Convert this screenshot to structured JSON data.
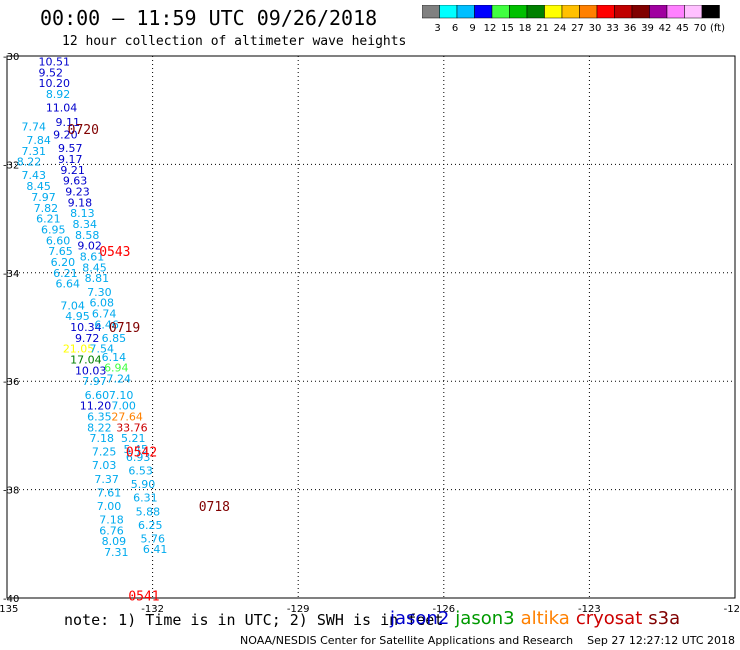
{
  "title": "00:00 – 11:59 UTC 09/26/2018",
  "subtitle": "12 hour collection of altimeter wave heights",
  "colorbar": {
    "colors": [
      "#808080",
      "#00ffff",
      "#00bfff",
      "#0000ff",
      "#40ff40",
      "#00c000",
      "#008000",
      "#ffff00",
      "#ffc000",
      "#ff8000",
      "#ff0000",
      "#c00000",
      "#800000",
      "#a000a0",
      "#ff80ff",
      "#ffc0ff",
      "#000000"
    ],
    "labels": [
      "3",
      "6",
      "9",
      "12",
      "15",
      "18",
      "21",
      "24",
      "27",
      "30",
      "33",
      "36",
      "39",
      "42",
      "45",
      "70",
      "(ft)"
    ]
  },
  "axes": {
    "lon_ticks": [
      "-135",
      "-132",
      "-129",
      "-126",
      "-123",
      "-120"
    ],
    "lat_ticks": [
      "-30",
      "-32",
      "-34",
      "-36",
      "-38",
      "-40"
    ]
  },
  "note": "note: 1) Time is in UTC; 2) SWH is in feet",
  "satellites": [
    {
      "name": "jason2",
      "color": "#0000cc"
    },
    {
      "name": "jason3",
      "color": "#009900"
    },
    {
      "name": "altika",
      "color": "#ff8000"
    },
    {
      "name": "cryosat",
      "color": "#cc0000"
    },
    {
      "name": "s3a",
      "color": "#800000"
    }
  ],
  "footer": "NOAA/NESDIS Center for Satellite Applications and Research    Sep 27 12:27:12 UTC 2018",
  "chart_data": {
    "type": "scatter",
    "title": "00:00 – 11:59 UTC 09/26/2018",
    "subtitle": "12 hour collection of altimeter wave heights",
    "xlim": [
      -135,
      -120
    ],
    "ylim": [
      -40,
      -30
    ],
    "xticks": [
      -135,
      -132,
      -129,
      -126,
      -123,
      -120
    ],
    "yticks": [
      -30,
      -32,
      -34,
      -36,
      -38,
      -40
    ],
    "grid": true,
    "time_labels": [
      {
        "text": "0720",
        "lon": -133.75,
        "lat": -31.35,
        "color": "#800000"
      },
      {
        "text": "0543",
        "lon": -133.1,
        "lat": -33.6,
        "color": "#ff0000"
      },
      {
        "text": "0719",
        "lon": -132.9,
        "lat": -35.0,
        "color": "#800000"
      },
      {
        "text": "0542",
        "lon": -132.55,
        "lat": -37.3,
        "color": "#ff0000"
      },
      {
        "text": "0718",
        "lon": -131.05,
        "lat": -38.3,
        "color": "#800000"
      },
      {
        "text": "0541",
        "lon": -132.5,
        "lat": -39.95,
        "color": "#ff0000"
      }
    ],
    "points": [
      {
        "v": "10.51",
        "lon": -134.35,
        "lat": -30.1,
        "color": "#0000cc"
      },
      {
        "v": "9.52",
        "lon": -134.35,
        "lat": -30.3,
        "color": "#0000cc"
      },
      {
        "v": "10.20",
        "lon": -134.35,
        "lat": -30.5,
        "color": "#0000cc"
      },
      {
        "v": "8.92",
        "lon": -134.2,
        "lat": -30.7,
        "color": "#00aaee"
      },
      {
        "v": "11.04",
        "lon": -134.2,
        "lat": -30.95,
        "color": "#0000cc"
      },
      {
        "v": "7.74",
        "lon": -134.7,
        "lat": -31.3,
        "color": "#00aaee"
      },
      {
        "v": "9.11",
        "lon": -134.0,
        "lat": -31.22,
        "color": "#0000cc"
      },
      {
        "v": "9.20",
        "lon": -134.05,
        "lat": -31.45,
        "color": "#0000cc"
      },
      {
        "v": "7.84",
        "lon": -134.6,
        "lat": -31.55,
        "color": "#00aaee"
      },
      {
        "v": "9.57",
        "lon": -133.95,
        "lat": -31.7,
        "color": "#0000cc"
      },
      {
        "v": "7.31",
        "lon": -134.7,
        "lat": -31.75,
        "color": "#00aaee"
      },
      {
        "v": "8.22",
        "lon": -134.8,
        "lat": -31.95,
        "color": "#00aaee"
      },
      {
        "v": "9.17",
        "lon": -133.95,
        "lat": -31.9,
        "color": "#0000cc"
      },
      {
        "v": "9.21",
        "lon": -133.9,
        "lat": -32.1,
        "color": "#0000cc"
      },
      {
        "v": "7.43",
        "lon": -134.7,
        "lat": -32.2,
        "color": "#00aaee"
      },
      {
        "v": "9.63",
        "lon": -133.85,
        "lat": -32.3,
        "color": "#0000cc"
      },
      {
        "v": "8.45",
        "lon": -134.6,
        "lat": -32.4,
        "color": "#00aaee"
      },
      {
        "v": "9.23",
        "lon": -133.8,
        "lat": -32.5,
        "color": "#0000cc"
      },
      {
        "v": "7.97",
        "lon": -134.5,
        "lat": -32.6,
        "color": "#00aaee"
      },
      {
        "v": "9.18",
        "lon": -133.75,
        "lat": -32.7,
        "color": "#0000cc"
      },
      {
        "v": "7.82",
        "lon": -134.45,
        "lat": -32.8,
        "color": "#00aaee"
      },
      {
        "v": "8.13",
        "lon": -133.7,
        "lat": -32.9,
        "color": "#00aaee"
      },
      {
        "v": "6.21",
        "lon": -134.4,
        "lat": -33.0,
        "color": "#00aaee"
      },
      {
        "v": "8.34",
        "lon": -133.65,
        "lat": -33.1,
        "color": "#00aaee"
      },
      {
        "v": "6.95",
        "lon": -134.3,
        "lat": -33.2,
        "color": "#00aaee"
      },
      {
        "v": "8.58",
        "lon": -133.6,
        "lat": -33.3,
        "color": "#00aaee"
      },
      {
        "v": "6.60",
        "lon": -134.2,
        "lat": -33.4,
        "color": "#00aaee"
      },
      {
        "v": "9.02",
        "lon": -133.55,
        "lat": -33.5,
        "color": "#0000cc"
      },
      {
        "v": "7.65",
        "lon": -134.15,
        "lat": -33.6,
        "color": "#00aaee"
      },
      {
        "v": "8.61",
        "lon": -133.5,
        "lat": -33.7,
        "color": "#00aaee"
      },
      {
        "v": "6.20",
        "lon": -134.1,
        "lat": -33.8,
        "color": "#00aaee"
      },
      {
        "v": "8.45",
        "lon": -133.45,
        "lat": -33.9,
        "color": "#00aaee"
      },
      {
        "v": "6.21",
        "lon": -134.05,
        "lat": -34.0,
        "color": "#00aaee"
      },
      {
        "v": "8.81",
        "lon": -133.4,
        "lat": -34.1,
        "color": "#00aaee"
      },
      {
        "v": "6.64",
        "lon": -134.0,
        "lat": -34.2,
        "color": "#00aaee"
      },
      {
        "v": "7.30",
        "lon": -133.35,
        "lat": -34.35,
        "color": "#00aaee"
      },
      {
        "v": "6.08",
        "lon": -133.3,
        "lat": -34.55,
        "color": "#00aaee"
      },
      {
        "v": "7.04",
        "lon": -133.9,
        "lat": -34.6,
        "color": "#00aaee"
      },
      {
        "v": "6.74",
        "lon": -133.25,
        "lat": -34.75,
        "color": "#00aaee"
      },
      {
        "v": "4.95",
        "lon": -133.8,
        "lat": -34.8,
        "color": "#00aaee"
      },
      {
        "v": "10.34",
        "lon": -133.7,
        "lat": -35.0,
        "color": "#0000cc"
      },
      {
        "v": "6.46",
        "lon": -133.2,
        "lat": -34.95,
        "color": "#00aaee"
      },
      {
        "v": "9.72",
        "lon": -133.6,
        "lat": -35.2,
        "color": "#0000cc"
      },
      {
        "v": "6.85",
        "lon": -133.05,
        "lat": -35.2,
        "color": "#00aaee"
      },
      {
        "v": "21.05",
        "lon": -133.85,
        "lat": -35.4,
        "color": "#ffff00"
      },
      {
        "v": "7.54",
        "lon": -133.3,
        "lat": -35.4,
        "color": "#00aaee"
      },
      {
        "v": "17.04",
        "lon": -133.7,
        "lat": -35.6,
        "color": "#008000"
      },
      {
        "v": "6.14",
        "lon": -133.05,
        "lat": -35.55,
        "color": "#00aaee"
      },
      {
        "v": "10.03",
        "lon": -133.6,
        "lat": -35.8,
        "color": "#0000cc"
      },
      {
        "v": "6.94",
        "lon": -133.0,
        "lat": -35.75,
        "color": "#40ff40"
      },
      {
        "v": "7.97",
        "lon": -133.45,
        "lat": -36.0,
        "color": "#00aaee"
      },
      {
        "v": "7.24",
        "lon": -132.95,
        "lat": -35.95,
        "color": "#00aaee"
      },
      {
        "v": "6.60",
        "lon": -133.4,
        "lat": -36.25,
        "color": "#00aaee"
      },
      {
        "v": "7.10",
        "lon": -132.9,
        "lat": -36.25,
        "color": "#00aaee"
      },
      {
        "v": "11.20",
        "lon": -133.5,
        "lat": -36.45,
        "color": "#0000cc"
      },
      {
        "v": "7.00",
        "lon": -132.85,
        "lat": -36.45,
        "color": "#00aaee"
      },
      {
        "v": "6.35",
        "lon": -133.35,
        "lat": -36.65,
        "color": "#00aaee"
      },
      {
        "v": "27.64",
        "lon": -132.85,
        "lat": -36.65,
        "color": "#ff8000"
      },
      {
        "v": "8.22",
        "lon": -133.35,
        "lat": -36.85,
        "color": "#00aaee"
      },
      {
        "v": "33.76",
        "lon": -132.75,
        "lat": -36.85,
        "color": "#cc0000"
      },
      {
        "v": "7.18",
        "lon": -133.3,
        "lat": -37.05,
        "color": "#00aaee"
      },
      {
        "v": "5.21",
        "lon": -132.65,
        "lat": -37.05,
        "color": "#00aaee"
      },
      {
        "v": "7.25",
        "lon": -133.25,
        "lat": -37.3,
        "color": "#00aaee"
      },
      {
        "v": "5.45",
        "lon": -132.6,
        "lat": -37.25,
        "color": "#00aaee"
      },
      {
        "v": "6.93",
        "lon": -132.55,
        "lat": -37.4,
        "color": "#00aaee"
      },
      {
        "v": "7.03",
        "lon": -133.25,
        "lat": -37.55,
        "color": "#00aaee"
      },
      {
        "v": "6.53",
        "lon": -132.5,
        "lat": -37.65,
        "color": "#00aaee"
      },
      {
        "v": "7.37",
        "lon": -133.2,
        "lat": -37.8,
        "color": "#00aaee"
      },
      {
        "v": "5.90",
        "lon": -132.45,
        "lat": -37.9,
        "color": "#00aaee"
      },
      {
        "v": "7.61",
        "lon": -133.15,
        "lat": -38.05,
        "color": "#00aaee"
      },
      {
        "v": "6.31",
        "lon": -132.4,
        "lat": -38.15,
        "color": "#00aaee"
      },
      {
        "v": "7.00",
        "lon": -133.15,
        "lat": -38.3,
        "color": "#00aaee"
      },
      {
        "v": "5.88",
        "lon": -132.35,
        "lat": -38.4,
        "color": "#00aaee"
      },
      {
        "v": "7.18",
        "lon": -133.1,
        "lat": -38.55,
        "color": "#00aaee"
      },
      {
        "v": "6.25",
        "lon": -132.3,
        "lat": -38.65,
        "color": "#00aaee"
      },
      {
        "v": "6.76",
        "lon": -133.1,
        "lat": -38.75,
        "color": "#00aaee"
      },
      {
        "v": "5.76",
        "lon": -132.25,
        "lat": -38.9,
        "color": "#00aaee"
      },
      {
        "v": "8.09",
        "lon": -133.05,
        "lat": -38.95,
        "color": "#00aaee"
      },
      {
        "v": "6.41",
        "lon": -132.2,
        "lat": -39.1,
        "color": "#00aaee"
      },
      {
        "v": "7.31",
        "lon": -133.0,
        "lat": -39.15,
        "color": "#00aaee"
      }
    ]
  }
}
